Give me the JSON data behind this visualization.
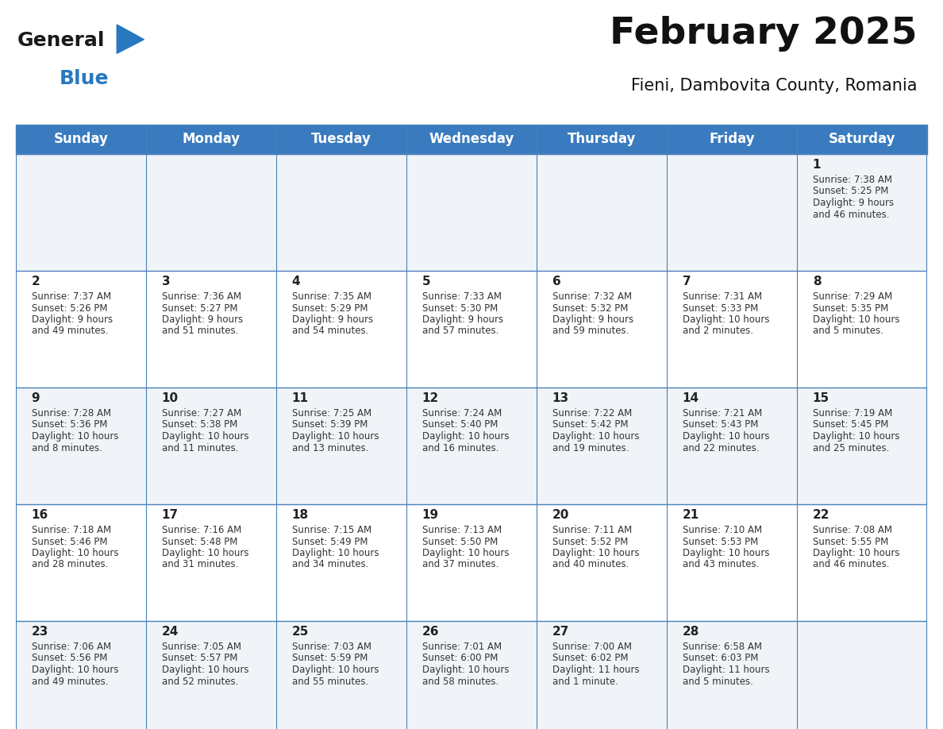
{
  "title": "February 2025",
  "subtitle": "Fieni, Dambovita County, Romania",
  "header_bg": "#3a7bbf",
  "header_text": "#ffffff",
  "days_of_week": [
    "Sunday",
    "Monday",
    "Tuesday",
    "Wednesday",
    "Thursday",
    "Friday",
    "Saturday"
  ],
  "row0_bg": "#f0f4f8",
  "row1_bg": "#ffffff",
  "cell_border_color": "#4a80b8",
  "day_number_color": "#222222",
  "info_text_color": "#333333",
  "logo_general_color": "#1a1a1a",
  "logo_blue_color": "#2878c0",
  "separator_color": "#3a7bbf",
  "calendar": [
    [
      null,
      null,
      null,
      null,
      null,
      null,
      {
        "day": 1,
        "sunrise": "7:38 AM",
        "sunset": "5:25 PM",
        "daylight_l1": "9 hours",
        "daylight_l2": "and 46 minutes."
      }
    ],
    [
      {
        "day": 2,
        "sunrise": "7:37 AM",
        "sunset": "5:26 PM",
        "daylight_l1": "9 hours",
        "daylight_l2": "and 49 minutes."
      },
      {
        "day": 3,
        "sunrise": "7:36 AM",
        "sunset": "5:27 PM",
        "daylight_l1": "9 hours",
        "daylight_l2": "and 51 minutes."
      },
      {
        "day": 4,
        "sunrise": "7:35 AM",
        "sunset": "5:29 PM",
        "daylight_l1": "9 hours",
        "daylight_l2": "and 54 minutes."
      },
      {
        "day": 5,
        "sunrise": "7:33 AM",
        "sunset": "5:30 PM",
        "daylight_l1": "9 hours",
        "daylight_l2": "and 57 minutes."
      },
      {
        "day": 6,
        "sunrise": "7:32 AM",
        "sunset": "5:32 PM",
        "daylight_l1": "9 hours",
        "daylight_l2": "and 59 minutes."
      },
      {
        "day": 7,
        "sunrise": "7:31 AM",
        "sunset": "5:33 PM",
        "daylight_l1": "10 hours",
        "daylight_l2": "and 2 minutes."
      },
      {
        "day": 8,
        "sunrise": "7:29 AM",
        "sunset": "5:35 PM",
        "daylight_l1": "10 hours",
        "daylight_l2": "and 5 minutes."
      }
    ],
    [
      {
        "day": 9,
        "sunrise": "7:28 AM",
        "sunset": "5:36 PM",
        "daylight_l1": "10 hours",
        "daylight_l2": "and 8 minutes."
      },
      {
        "day": 10,
        "sunrise": "7:27 AM",
        "sunset": "5:38 PM",
        "daylight_l1": "10 hours",
        "daylight_l2": "and 11 minutes."
      },
      {
        "day": 11,
        "sunrise": "7:25 AM",
        "sunset": "5:39 PM",
        "daylight_l1": "10 hours",
        "daylight_l2": "and 13 minutes."
      },
      {
        "day": 12,
        "sunrise": "7:24 AM",
        "sunset": "5:40 PM",
        "daylight_l1": "10 hours",
        "daylight_l2": "and 16 minutes."
      },
      {
        "day": 13,
        "sunrise": "7:22 AM",
        "sunset": "5:42 PM",
        "daylight_l1": "10 hours",
        "daylight_l2": "and 19 minutes."
      },
      {
        "day": 14,
        "sunrise": "7:21 AM",
        "sunset": "5:43 PM",
        "daylight_l1": "10 hours",
        "daylight_l2": "and 22 minutes."
      },
      {
        "day": 15,
        "sunrise": "7:19 AM",
        "sunset": "5:45 PM",
        "daylight_l1": "10 hours",
        "daylight_l2": "and 25 minutes."
      }
    ],
    [
      {
        "day": 16,
        "sunrise": "7:18 AM",
        "sunset": "5:46 PM",
        "daylight_l1": "10 hours",
        "daylight_l2": "and 28 minutes."
      },
      {
        "day": 17,
        "sunrise": "7:16 AM",
        "sunset": "5:48 PM",
        "daylight_l1": "10 hours",
        "daylight_l2": "and 31 minutes."
      },
      {
        "day": 18,
        "sunrise": "7:15 AM",
        "sunset": "5:49 PM",
        "daylight_l1": "10 hours",
        "daylight_l2": "and 34 minutes."
      },
      {
        "day": 19,
        "sunrise": "7:13 AM",
        "sunset": "5:50 PM",
        "daylight_l1": "10 hours",
        "daylight_l2": "and 37 minutes."
      },
      {
        "day": 20,
        "sunrise": "7:11 AM",
        "sunset": "5:52 PM",
        "daylight_l1": "10 hours",
        "daylight_l2": "and 40 minutes."
      },
      {
        "day": 21,
        "sunrise": "7:10 AM",
        "sunset": "5:53 PM",
        "daylight_l1": "10 hours",
        "daylight_l2": "and 43 minutes."
      },
      {
        "day": 22,
        "sunrise": "7:08 AM",
        "sunset": "5:55 PM",
        "daylight_l1": "10 hours",
        "daylight_l2": "and 46 minutes."
      }
    ],
    [
      {
        "day": 23,
        "sunrise": "7:06 AM",
        "sunset": "5:56 PM",
        "daylight_l1": "10 hours",
        "daylight_l2": "and 49 minutes."
      },
      {
        "day": 24,
        "sunrise": "7:05 AM",
        "sunset": "5:57 PM",
        "daylight_l1": "10 hours",
        "daylight_l2": "and 52 minutes."
      },
      {
        "day": 25,
        "sunrise": "7:03 AM",
        "sunset": "5:59 PM",
        "daylight_l1": "10 hours",
        "daylight_l2": "and 55 minutes."
      },
      {
        "day": 26,
        "sunrise": "7:01 AM",
        "sunset": "6:00 PM",
        "daylight_l1": "10 hours",
        "daylight_l2": "and 58 minutes."
      },
      {
        "day": 27,
        "sunrise": "7:00 AM",
        "sunset": "6:02 PM",
        "daylight_l1": "11 hours",
        "daylight_l2": "and 1 minute."
      },
      {
        "day": 28,
        "sunrise": "6:58 AM",
        "sunset": "6:03 PM",
        "daylight_l1": "11 hours",
        "daylight_l2": "and 5 minutes."
      },
      null
    ]
  ],
  "figsize": [
    11.88,
    9.18
  ],
  "dpi": 100
}
